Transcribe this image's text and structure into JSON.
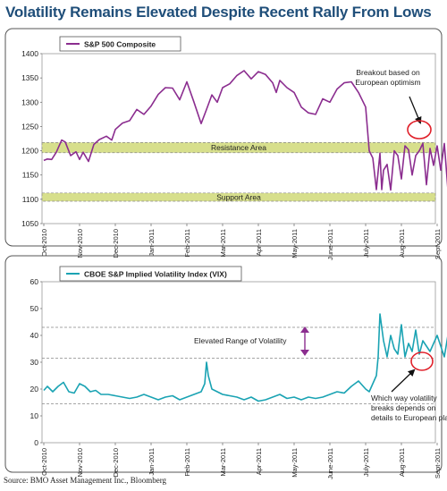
{
  "headline": "Volatility Remains Elevated Despite Recent Rally From Lows",
  "source": "Source: BMO Asset Management Inc., Bloomberg",
  "x_tick_labels": [
    "Oct-2010",
    "Nov-2010",
    "Dec-2010",
    "Jan-2011",
    "Feb-2011",
    "Mar-2011",
    "Apr-2011",
    "May-2011",
    "June-2011",
    "July-2011",
    "Aug-2011",
    "Sept-2011",
    "Oct-2011"
  ],
  "chart_data": [
    {
      "type": "line",
      "legend": "S&P 500 Composite",
      "color": "#8b2d8f",
      "band_color": "#d7df8c",
      "ylim": [
        1050,
        1400
      ],
      "yticks": [
        1050,
        1100,
        1150,
        1200,
        1250,
        1300,
        1350,
        1400
      ],
      "bands": [
        {
          "label": "Resistance Area",
          "from": 1196,
          "to": 1217
        },
        {
          "label": "Support Area",
          "from": 1096,
          "to": 1113
        }
      ],
      "annotations": [
        {
          "text": [
            "Breakout based on",
            "European optimism"
          ],
          "target": [
            12.0,
            1232
          ]
        }
      ],
      "x": [
        0,
        0.1,
        0.22,
        0.35,
        0.5,
        0.6,
        0.75,
        0.9,
        1,
        1.1,
        1.25,
        1.4,
        1.55,
        1.75,
        1.9,
        2,
        2.2,
        2.4,
        2.6,
        2.8,
        3,
        3.2,
        3.4,
        3.6,
        3.8,
        4,
        4.2,
        4.4,
        4.55,
        4.7,
        4.85,
        5,
        5.2,
        5.4,
        5.6,
        5.8,
        6,
        6.2,
        6.4,
        6.5,
        6.6,
        6.8,
        7,
        7.2,
        7.4,
        7.6,
        7.8,
        8,
        8.2,
        8.4,
        8.6,
        8.8,
        9,
        9.1,
        9.2,
        9.3,
        9.4,
        9.45,
        9.5,
        9.6,
        9.7,
        9.8,
        9.9,
        10,
        10.1,
        10.2,
        10.3,
        10.4,
        10.5,
        10.6,
        10.7,
        10.8,
        10.9,
        11,
        11.1,
        11.2,
        11.3,
        11.4,
        11.5,
        11.6,
        11.7,
        11.8,
        11.9,
        12,
        12.08,
        12.15
      ],
      "values": [
        1180,
        1183,
        1182,
        1197,
        1222,
        1218,
        1190,
        1198,
        1182,
        1197,
        1178,
        1213,
        1223,
        1230,
        1222,
        1244,
        1257,
        1262,
        1285,
        1275,
        1292,
        1316,
        1330,
        1329,
        1305,
        1342,
        1300,
        1256,
        1285,
        1315,
        1300,
        1330,
        1338,
        1355,
        1365,
        1348,
        1363,
        1357,
        1340,
        1320,
        1345,
        1330,
        1320,
        1290,
        1278,
        1275,
        1307,
        1300,
        1327,
        1340,
        1342,
        1320,
        1290,
        1200,
        1185,
        1120,
        1195,
        1120,
        1160,
        1172,
        1119,
        1200,
        1190,
        1142,
        1210,
        1202,
        1150,
        1190,
        1200,
        1215,
        1130,
        1205,
        1170,
        1210,
        1160,
        1215,
        1120,
        1220,
        1100,
        1155,
        1225,
        1195,
        1212,
        1232,
        1245,
        1226
      ]
    },
    {
      "type": "line",
      "legend": "CBOE S&P Implied Volatility Index (VIX)",
      "color": "#1aa3b3",
      "ylim": [
        0,
        60
      ],
      "yticks": [
        0,
        10,
        20,
        30,
        40,
        50,
        60
      ],
      "reference_lines": [
        43,
        31.5,
        14.5
      ],
      "annotations": [
        {
          "text": [
            "Elevated Range of Volatility"
          ]
        },
        {
          "text": [
            "Which way volatility",
            "breaks depends on",
            "details to European plan"
          ],
          "target": [
            11.95,
            31
          ]
        }
      ],
      "x": [
        0,
        0.1,
        0.25,
        0.4,
        0.55,
        0.7,
        0.85,
        1,
        1.15,
        1.3,
        1.45,
        1.6,
        1.8,
        2,
        2.2,
        2.4,
        2.6,
        2.8,
        3,
        3.2,
        3.4,
        3.6,
        3.8,
        4,
        4.2,
        4.4,
        4.5,
        4.55,
        4.6,
        4.7,
        4.85,
        5,
        5.2,
        5.4,
        5.6,
        5.8,
        6,
        6.2,
        6.4,
        6.6,
        6.8,
        7,
        7.2,
        7.4,
        7.6,
        7.8,
        8,
        8.2,
        8.4,
        8.6,
        8.8,
        9,
        9.1,
        9.2,
        9.3,
        9.35,
        9.4,
        9.5,
        9.6,
        9.7,
        9.8,
        9.9,
        10,
        10.1,
        10.2,
        10.3,
        10.4,
        10.5,
        10.6,
        10.7,
        10.8,
        10.9,
        11,
        11.1,
        11.2,
        11.3,
        11.4,
        11.5,
        11.6,
        11.7,
        11.8,
        11.9,
        12,
        12.08,
        12.15
      ],
      "values": [
        19.5,
        21,
        19,
        21,
        22.5,
        19,
        18.5,
        22,
        21,
        19,
        19.5,
        18,
        18,
        17.5,
        17,
        16.5,
        17,
        18,
        17,
        16,
        17,
        17.5,
        16,
        17,
        18,
        19,
        22,
        30,
        25,
        20,
        19,
        18,
        17.5,
        17,
        16,
        17,
        15.5,
        16,
        17,
        18,
        16.5,
        17,
        16,
        17,
        16.5,
        17,
        18,
        19,
        18.5,
        21,
        23,
        20,
        19,
        22,
        25,
        32,
        48,
        38,
        32,
        40,
        35,
        33,
        44,
        32,
        37,
        34,
        42,
        33,
        38,
        36,
        34,
        37,
        40,
        36,
        32,
        40,
        45,
        38,
        34,
        41,
        33,
        35,
        30.5,
        33,
        31
      ]
    }
  ]
}
